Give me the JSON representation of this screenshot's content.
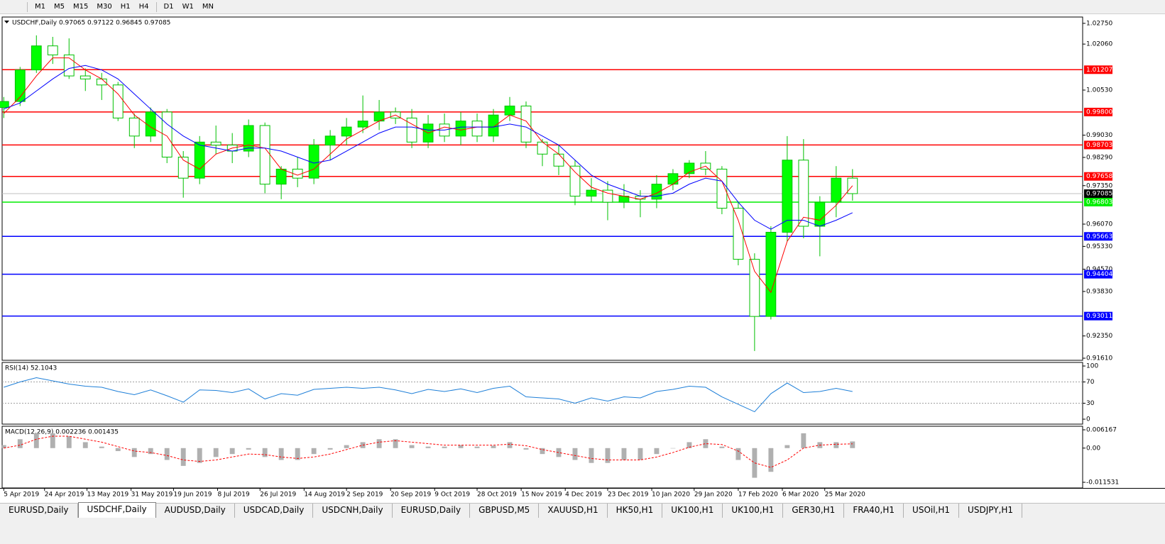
{
  "toolbar": {
    "timeframes": [
      "M1",
      "M5",
      "M15",
      "M30",
      "H1",
      "H4",
      "D1",
      "W1",
      "MN"
    ]
  },
  "chart_data": [
    {
      "type": "candlestick",
      "title": "USDCHF,Daily  0.97065 0.97122 0.96845 0.97085",
      "xlim": [
        -0.1,
        66.1
      ],
      "ylim": [
        0.9154,
        1.0296
      ],
      "xticks": [
        {
          "value": 0,
          "label": "5 Apr 2019"
        },
        {
          "value": 2.5,
          "label": "24 Apr 2019"
        },
        {
          "value": 5.1,
          "label": "13 May 2019"
        },
        {
          "value": 7.8,
          "label": "31 May 2019"
        },
        {
          "value": 10.4,
          "label": "19 Jun 2019"
        },
        {
          "value": 13.1,
          "label": "8 Jul 2019"
        },
        {
          "value": 15.7,
          "label": "26 Jul 2019"
        },
        {
          "value": 18.4,
          "label": "14 Aug 2019"
        },
        {
          "value": 21.0,
          "label": "2 Sep 2019"
        },
        {
          "value": 23.7,
          "label": "20 Sep 2019"
        },
        {
          "value": 26.4,
          "label": "9 Oct 2019"
        },
        {
          "value": 29.0,
          "label": "28 Oct 2019"
        },
        {
          "value": 31.7,
          "label": "15 Nov 2019"
        },
        {
          "value": 34.4,
          "label": "4 Dec 2019"
        },
        {
          "value": 37.0,
          "label": "23 Dec 2019"
        },
        {
          "value": 39.7,
          "label": "10 Jan 2020"
        },
        {
          "value": 42.3,
          "label": "29 Jan 2020"
        },
        {
          "value": 45.0,
          "label": "17 Feb 2020"
        },
        {
          "value": 47.7,
          "label": "6 Mar 2020"
        },
        {
          "value": 50.3,
          "label": "25 Mar 2020"
        }
      ],
      "yticks": [
        {
          "value": 1.0275,
          "label": "1.02750"
        },
        {
          "value": 1.0206,
          "label": "1.02060"
        },
        {
          "value": 1.0053,
          "label": "1.00530"
        },
        {
          "value": 0.9903,
          "label": "0.99030"
        },
        {
          "value": 0.9829,
          "label": "0.98290"
        },
        {
          "value": 0.9735,
          "label": "0.97350"
        },
        {
          "value": 0.9607,
          "label": "0.96070"
        },
        {
          "value": 0.9533,
          "label": "0.95330"
        },
        {
          "value": 0.9457,
          "label": "0.94570"
        },
        {
          "value": 0.9383,
          "label": "0.93830"
        },
        {
          "value": 0.9235,
          "label": "0.92350"
        },
        {
          "value": 0.9161,
          "label": "0.91610"
        }
      ],
      "levels": [
        {
          "value": 1.01207,
          "color": "#ff0000"
        },
        {
          "value": 0.998,
          "label": "0.99800",
          "color": "#ff0000"
        },
        {
          "value": 0.98703,
          "color": "#ff0000"
        },
        {
          "value": 0.97658,
          "color": "#ff0000"
        },
        {
          "value": 0.97085,
          "color": "#000000"
        },
        {
          "value": 0.96803,
          "color": "#00ee00"
        },
        {
          "value": 0.95663,
          "color": "#0000ff"
        },
        {
          "value": 0.94404,
          "color": "#0000ff"
        },
        {
          "value": 0.93011,
          "color": "#0000ff"
        }
      ],
      "bull_color": "#00ff00",
      "bear_color": "#ffffff",
      "wick_color": "#00c000",
      "open": [
        0.9995,
        1.0015,
        1.012,
        1.02,
        1.017,
        1.01,
        1.009,
        1.007,
        0.996,
        0.99,
        0.998,
        0.983,
        0.976,
        0.988,
        0.987,
        0.985,
        0.9935,
        0.974,
        0.979,
        0.976,
        0.987,
        0.99,
        0.993,
        0.995,
        0.998,
        0.996,
        0.988,
        0.994,
        0.99,
        0.995,
        0.99,
        0.997,
        1.0,
        0.988,
        0.984,
        0.98,
        0.97,
        0.972,
        0.968,
        0.97,
        0.969,
        0.974,
        0.9775,
        0.981,
        0.979,
        0.966,
        0.949,
        0.93,
        0.958,
        0.982,
        0.96,
        0.968,
        0.976
      ],
      "high": [
        1.003,
        1.013,
        1.0235,
        1.023,
        1.0225,
        1.0125,
        1.011,
        1.008,
        0.9975,
        0.9995,
        0.999,
        0.985,
        0.99,
        0.9935,
        0.991,
        0.9955,
        0.9945,
        0.98,
        0.983,
        0.989,
        0.992,
        0.996,
        1.0035,
        1.002,
        0.9995,
        0.999,
        0.997,
        0.9975,
        0.998,
        0.9975,
        0.999,
        1.003,
        1.0015,
        0.989,
        0.987,
        0.982,
        0.976,
        0.975,
        0.974,
        0.972,
        0.977,
        0.979,
        0.982,
        0.985,
        0.98,
        0.968,
        0.951,
        0.96,
        0.99,
        0.989,
        0.97,
        0.98,
        0.979
      ],
      "low": [
        0.996,
        1.0,
        1.011,
        1.014,
        1.009,
        1.005,
        1.002,
        0.995,
        0.986,
        0.988,
        0.981,
        0.9695,
        0.974,
        0.984,
        0.981,
        0.983,
        0.971,
        0.969,
        0.973,
        0.974,
        0.982,
        0.987,
        0.991,
        0.992,
        0.994,
        0.986,
        0.986,
        0.988,
        0.987,
        0.988,
        0.988,
        0.995,
        0.986,
        0.98,
        0.977,
        0.967,
        0.968,
        0.962,
        0.966,
        0.963,
        0.966,
        0.972,
        0.976,
        0.977,
        0.964,
        0.947,
        0.9185,
        0.929,
        0.955,
        0.956,
        0.95,
        0.963,
        0.9685
      ],
      "close": [
        1.0015,
        1.012,
        1.02,
        1.017,
        1.01,
        1.009,
        1.007,
        0.996,
        0.99,
        0.998,
        0.983,
        0.976,
        0.988,
        0.987,
        0.985,
        0.9935,
        0.974,
        0.979,
        0.976,
        0.987,
        0.99,
        0.993,
        0.995,
        0.998,
        0.996,
        0.988,
        0.994,
        0.99,
        0.995,
        0.99,
        0.997,
        1.0,
        0.988,
        0.984,
        0.98,
        0.97,
        0.972,
        0.968,
        0.97,
        0.969,
        0.974,
        0.9775,
        0.981,
        0.979,
        0.966,
        0.949,
        0.93,
        0.958,
        0.982,
        0.96,
        0.968,
        0.976,
        0.97085
      ],
      "lines": [
        {
          "color": "#ff0000",
          "values": [
            0.9975,
            1.003,
            1.01,
            1.016,
            1.016,
            1.012,
            1.009,
            1.004,
            0.997,
            0.993,
            0.99,
            0.982,
            0.979,
            0.984,
            0.986,
            0.987,
            0.986,
            0.979,
            0.977,
            0.979,
            0.984,
            0.989,
            0.992,
            0.995,
            0.997,
            0.994,
            0.991,
            0.993,
            0.992,
            0.993,
            0.993,
            0.997,
            0.995,
            0.988,
            0.984,
            0.978,
            0.973,
            0.971,
            0.97,
            0.969,
            0.971,
            0.974,
            0.978,
            0.98,
            0.975,
            0.962,
            0.945,
            0.938,
            0.955,
            0.963,
            0.962,
            0.967,
            0.9735
          ]
        },
        {
          "color": "#0000ff",
          "values": [
            0.999,
            1.001,
            1.005,
            1.009,
            1.0125,
            1.0135,
            1.012,
            1.009,
            1.004,
            0.999,
            0.994,
            0.99,
            0.987,
            0.986,
            0.985,
            0.986,
            0.986,
            0.985,
            0.983,
            0.981,
            0.982,
            0.985,
            0.988,
            0.991,
            0.993,
            0.993,
            0.992,
            0.992,
            0.993,
            0.993,
            0.993,
            0.994,
            0.993,
            0.99,
            0.987,
            0.982,
            0.977,
            0.974,
            0.972,
            0.97,
            0.97,
            0.971,
            0.974,
            0.976,
            0.975,
            0.968,
            0.962,
            0.959,
            0.962,
            0.962,
            0.96,
            0.962,
            0.9645
          ]
        }
      ]
    },
    {
      "type": "line",
      "title": "RSI(14) 52.1043",
      "xlim": [
        -0.1,
        66.1
      ],
      "ylim": [
        -9.3,
        106.7
      ],
      "yticks": [
        100,
        70,
        30,
        0
      ],
      "levels": [
        70,
        30
      ],
      "series": [
        {
          "color": "#1e7fd8",
          "values": [
            60,
            70,
            78,
            72,
            66,
            62,
            60,
            52,
            46,
            55,
            44,
            32,
            55,
            54,
            50,
            57,
            38,
            48,
            45,
            56,
            58,
            60,
            58,
            60,
            55,
            48,
            56,
            52,
            57,
            50,
            58,
            62,
            42,
            40,
            38,
            30,
            40,
            34,
            42,
            40,
            52,
            56,
            62,
            60,
            42,
            28,
            14,
            48,
            68,
            50,
            52,
            58,
            52.1043
          ]
        }
      ]
    },
    {
      "type": "macd",
      "title": "MACD(12,26,9) 0.002236 0.001435",
      "xlim": [
        -0.1,
        66.1
      ],
      "ylim": [
        -0.013444,
        0.007363
      ],
      "yticks": [
        0.006167,
        {
          "value": 0,
          "label": "0.00"
        },
        -0.011531
      ],
      "series": [
        {
          "style": "bar",
          "color": "#b0b0b0",
          "values": [
            0.001,
            0.003,
            0.005,
            0.005,
            0.004,
            0.002,
            0.0005,
            -0.001,
            -0.003,
            -0.002,
            -0.004,
            -0.006,
            -0.005,
            -0.003,
            -0.002,
            -0.0005,
            -0.003,
            -0.004,
            -0.004,
            -0.002,
            -0.0005,
            0.001,
            0.002,
            0.003,
            0.003,
            0.001,
            0.0005,
            0.0005,
            0.001,
            0.0005,
            0.0008,
            0.002,
            -0.0005,
            -0.002,
            -0.003,
            -0.004,
            -0.005,
            -0.005,
            -0.004,
            -0.004,
            -0.002,
            0,
            0.002,
            0.003,
            0.0005,
            -0.004,
            -0.01,
            -0.008,
            0.001,
            0.005,
            0.002,
            0.002,
            0.002236
          ]
        },
        {
          "style": "dashed",
          "color": "#ff0000",
          "values": [
            0,
            0.001,
            0.003,
            0.004,
            0.004,
            0.003,
            0.002,
            0.0005,
            -0.001,
            -0.0015,
            -0.0025,
            -0.004,
            -0.0045,
            -0.004,
            -0.003,
            -0.002,
            -0.0022,
            -0.003,
            -0.0035,
            -0.003,
            -0.002,
            -0.0005,
            0.001,
            0.002,
            0.0025,
            0.002,
            0.0015,
            0.001,
            0.001,
            0.001,
            0.001,
            0.0013,
            0.0008,
            -0.0005,
            -0.0015,
            -0.0025,
            -0.0035,
            -0.004,
            -0.004,
            -0.004,
            -0.003,
            -0.0015,
            0.0003,
            0.0015,
            0.0012,
            -0.001,
            -0.005,
            -0.0065,
            -0.004,
            0,
            0.001,
            0.0013,
            0.001435
          ]
        }
      ]
    }
  ],
  "tabs": {
    "items": [
      "EURUSD,Daily",
      "USDCHF,Daily",
      "AUDUSD,Daily",
      "USDCAD,Daily",
      "USDCNH,Daily",
      "EURUSD,Daily",
      "GBPUSD,M5",
      "XAUUSD,H1",
      "HK50,H1",
      "UK100,H1",
      "UK100,H1",
      "GER30,H1",
      "FRA40,H1",
      "USOil,H1",
      "USDJPY,H1"
    ],
    "active": 1
  }
}
